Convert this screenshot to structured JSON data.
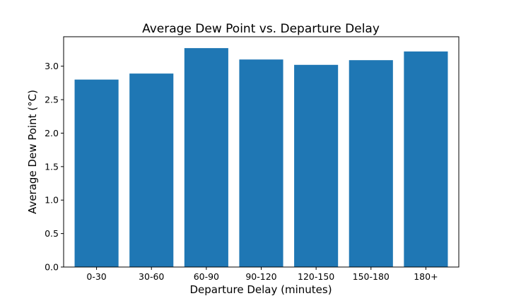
{
  "chart_data": {
    "type": "bar",
    "title": "Average Dew Point vs. Departure Delay",
    "xlabel": "Departure Delay (minutes)",
    "ylabel": "Average Dew Point (°C)",
    "categories": [
      "0-30",
      "30-60",
      "60-90",
      "90-120",
      "120-150",
      "150-180",
      "180+"
    ],
    "values": [
      2.8,
      2.89,
      3.27,
      3.1,
      3.02,
      3.09,
      3.22
    ],
    "ylim": [
      0,
      3.44
    ],
    "yticks": [
      "0.0",
      "0.5",
      "1.0",
      "1.5",
      "2.0",
      "2.5",
      "3.0"
    ],
    "bar_color": "#1f77b4",
    "grid": false,
    "legend": "none"
  }
}
